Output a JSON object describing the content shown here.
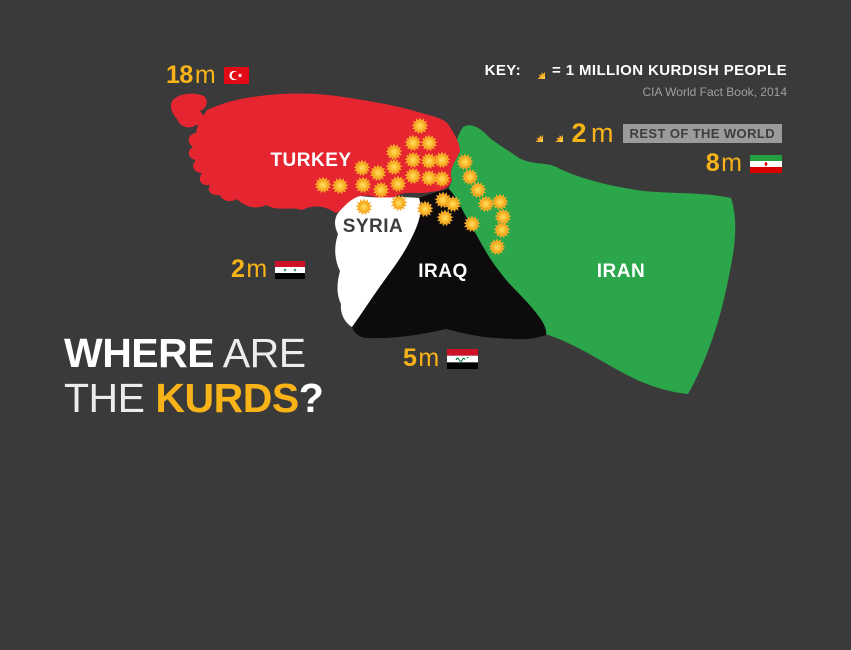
{
  "title": {
    "word1": "WHERE",
    "word2": " ARE",
    "word3": "THE ",
    "word4": "KURDS",
    "word5": "?"
  },
  "key": {
    "label": "KEY:",
    "icon": "sun-icon",
    "text": "= 1 MILLION KURDISH PEOPLE",
    "source": "CIA World Fact Book, 2014"
  },
  "rest_of_world": {
    "value": "2",
    "unit": "m",
    "label": "REST OF THE WORLD",
    "sun_count": 2
  },
  "countries": {
    "turkey": {
      "name": "TURKEY",
      "value": "18",
      "unit": "m",
      "millions": 18,
      "color": "#e52530",
      "flag_icon": "turkey-flag-icon",
      "suns": [
        [
          420,
          126
        ],
        [
          413,
          143
        ],
        [
          429,
          143
        ],
        [
          394,
          152
        ],
        [
          413,
          160
        ],
        [
          429,
          161
        ],
        [
          442,
          160
        ],
        [
          362,
          168
        ],
        [
          394,
          167
        ],
        [
          378,
          173
        ],
        [
          413,
          176
        ],
        [
          429,
          178
        ],
        [
          442,
          179
        ],
        [
          323,
          185
        ],
        [
          340,
          186
        ],
        [
          363,
          185
        ],
        [
          381,
          190
        ],
        [
          398,
          184
        ]
      ]
    },
    "syria": {
      "name": "SYRIA",
      "value": "2",
      "unit": "m",
      "millions": 2,
      "color": "#ffffff",
      "flag_icon": "syria-flag-icon",
      "suns": [
        [
          364,
          207
        ],
        [
          399,
          203
        ]
      ]
    },
    "iraq": {
      "name": "IRAQ",
      "value": "5",
      "unit": "m",
      "millions": 5,
      "color": "#0d0b0c",
      "flag_icon": "iraq-flag-icon",
      "suns": [
        [
          443,
          200
        ],
        [
          453,
          204
        ],
        [
          425,
          209
        ],
        [
          445,
          218
        ],
        [
          472,
          224
        ]
      ]
    },
    "iran": {
      "name": "IRAN",
      "value": "8",
      "unit": "m",
      "millions": 8,
      "color": "#2ba64b",
      "flag_icon": "iran-flag-icon",
      "suns": [
        [
          465,
          162
        ],
        [
          470,
          177
        ],
        [
          478,
          190
        ],
        [
          486,
          204
        ],
        [
          500,
          202
        ],
        [
          503,
          217
        ],
        [
          502,
          230
        ],
        [
          497,
          247
        ]
      ]
    }
  },
  "colors": {
    "background": "#3b3a3a",
    "accent_yellow": "#f8b318",
    "sun_center": "#ffd95e",
    "sun_edge": "#f59d1d",
    "chip_background": "#9b9b9b",
    "chip_text": "#3d3d3d",
    "source_text": "#9f9f9f"
  }
}
